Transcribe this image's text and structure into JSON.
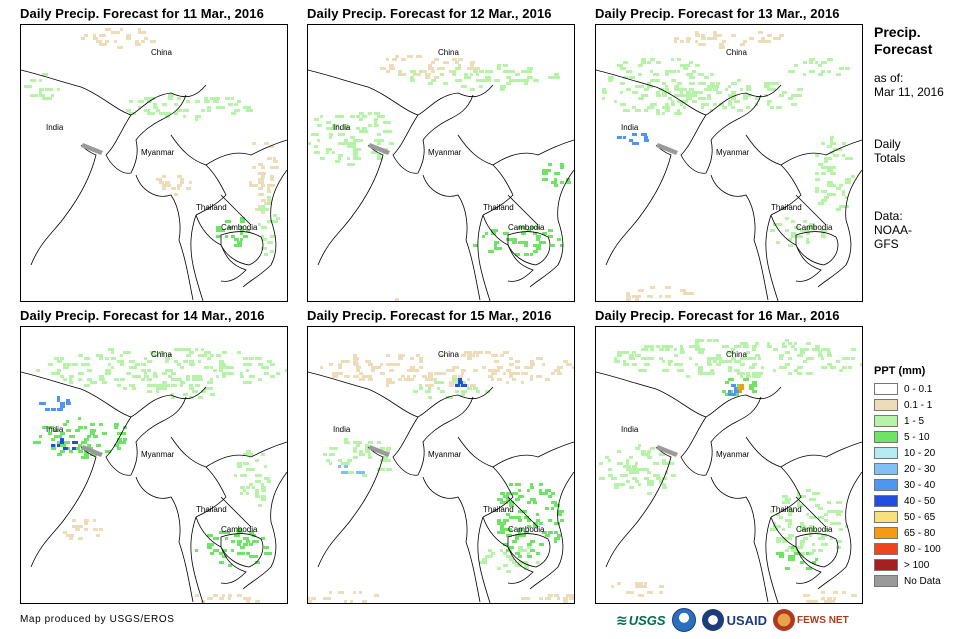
{
  "panels": [
    {
      "title": "Daily Precip. Forecast for 11 Mar., 2016"
    },
    {
      "title": "Daily Precip. Forecast for 12 Mar., 2016"
    },
    {
      "title": "Daily Precip. Forecast for 13 Mar., 2016"
    },
    {
      "title": "Daily Precip. Forecast for 14 Mar., 2016"
    },
    {
      "title": "Daily Precip. Forecast for 15 Mar., 2016"
    },
    {
      "title": "Daily Precip. Forecast for 16 Mar., 2016"
    }
  ],
  "map_labels": {
    "china": "China",
    "india": "India",
    "myanmar": "Myanmar",
    "thailand": "Thailand",
    "cambodia": "Cambodia"
  },
  "sidebar": {
    "title_line1": "Precip.",
    "title_line2": "Forecast",
    "asof_line1": "as of:",
    "asof_line2": "Mar 11, 2016",
    "totals_line1": "Daily",
    "totals_line2": "Totals",
    "data_line1": "Data:",
    "data_line2": "NOAA-",
    "data_line3": "GFS"
  },
  "legend": {
    "title": "PPT (mm)",
    "items": [
      {
        "label": "0 - 0.1",
        "color": "#ffffff"
      },
      {
        "label": "0.1 - 1",
        "color": "#ecdcb9"
      },
      {
        "label": "1 - 5",
        "color": "#b6f2a7"
      },
      {
        "label": "5 - 10",
        "color": "#6ee466"
      },
      {
        "label": "10 - 20",
        "color": "#b4ecf6"
      },
      {
        "label": "20 - 30",
        "color": "#80c0f6"
      },
      {
        "label": "30 - 40",
        "color": "#4e96f0"
      },
      {
        "label": "40 - 50",
        "color": "#1f4ee0"
      },
      {
        "label": "50 - 65",
        "color": "#f8e17a"
      },
      {
        "label": "65 - 80",
        "color": "#f59a12"
      },
      {
        "label": "80 - 100",
        "color": "#f0441c"
      },
      {
        "label": "> 100",
        "color": "#a81f1f"
      },
      {
        "label": "No Data",
        "color": "#9a9a9a"
      }
    ]
  },
  "credit": "Map produced by USGS/EROS",
  "logos": {
    "usgs": "USGS",
    "usaid": "USAID",
    "fews": "FEWS NET"
  }
}
